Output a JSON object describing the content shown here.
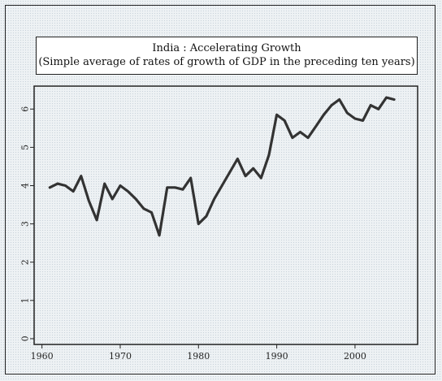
{
  "chart_data": {
    "type": "line",
    "title": "India : Accelerating Growth",
    "subtitle": "(Simple average of  rates of growth of  GDP in the preceding ten years)",
    "xlabel": "",
    "ylabel": "",
    "xlim": [
      1959,
      2008
    ],
    "ylim": [
      -0.15,
      6.6
    ],
    "x_ticks": [
      1960,
      1970,
      1980,
      1990,
      2000
    ],
    "y_ticks": [
      0,
      1,
      2,
      3,
      4,
      5,
      6
    ],
    "grid": false,
    "line_color": "#333333",
    "series": [
      {
        "name": "",
        "x": [
          1961,
          1962,
          1963,
          1964,
          1965,
          1966,
          1967,
          1968,
          1969,
          1970,
          1971,
          1972,
          1973,
          1974,
          1975,
          1976,
          1977,
          1978,
          1979,
          1980,
          1981,
          1982,
          1983,
          1984,
          1985,
          1986,
          1987,
          1988,
          1989,
          1990,
          1991,
          1992,
          1993,
          1994,
          1995,
          1996,
          1997,
          1998,
          1999,
          2000,
          2001,
          2002,
          2003,
          2004,
          2005
        ],
        "y": [
          3.95,
          4.05,
          4.0,
          3.85,
          4.25,
          3.6,
          3.1,
          4.05,
          3.65,
          4.0,
          3.85,
          3.65,
          3.4,
          3.3,
          2.7,
          3.95,
          3.95,
          3.9,
          4.2,
          3.0,
          3.2,
          3.65,
          4.0,
          4.35,
          4.7,
          4.25,
          4.45,
          4.2,
          4.8,
          5.85,
          5.7,
          5.25,
          5.4,
          5.25,
          5.55,
          5.85,
          6.1,
          6.25,
          5.9,
          5.75,
          5.7,
          6.1,
          6.0,
          6.3,
          6.25
        ]
      }
    ]
  }
}
